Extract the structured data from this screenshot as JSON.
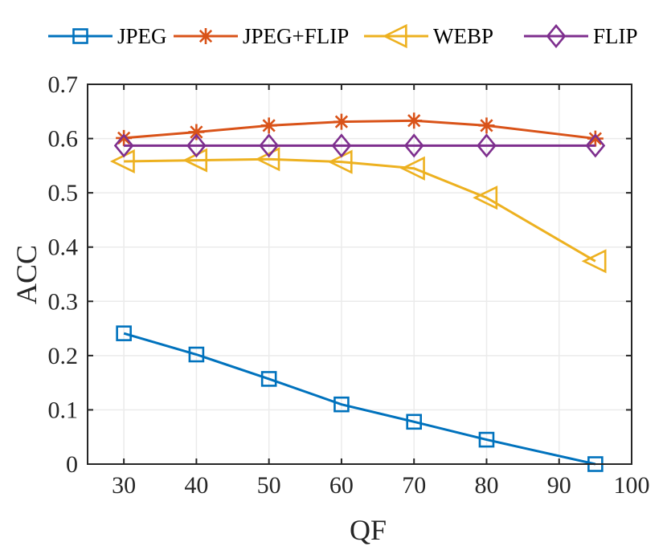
{
  "chart_data": {
    "type": "line",
    "title": "",
    "xlabel": "QF",
    "ylabel": "ACC",
    "xlim": [
      25,
      100
    ],
    "ylim": [
      0,
      0.7
    ],
    "xticks": [
      30,
      40,
      50,
      60,
      70,
      80,
      90,
      100
    ],
    "yticks": [
      0,
      0.1,
      0.2,
      0.3,
      0.4,
      0.5,
      0.6,
      0.7
    ],
    "xtick_labels": [
      "30",
      "40",
      "50",
      "60",
      "70",
      "80",
      "90",
      "100"
    ],
    "ytick_labels": [
      "0",
      "0.1",
      "0.2",
      "0.3",
      "0.4",
      "0.5",
      "0.6",
      "0.7"
    ],
    "grid": true,
    "legend_position": "top",
    "x": [
      30,
      40,
      50,
      60,
      70,
      80,
      95
    ],
    "series": [
      {
        "name": "JPEG",
        "marker": "square",
        "color": "#0072BD",
        "values": [
          0.241,
          0.202,
          0.157,
          0.11,
          0.078,
          0.045,
          0.0
        ]
      },
      {
        "name": "JPEG+FLIP",
        "marker": "asterisk",
        "color": "#D95319",
        "values": [
          0.601,
          0.612,
          0.624,
          0.631,
          0.633,
          0.624,
          0.6
        ]
      },
      {
        "name": "WEBP",
        "marker": "triangle-left",
        "color": "#EDB120",
        "values": [
          0.558,
          0.56,
          0.562,
          0.557,
          0.545,
          0.491,
          0.374
        ]
      },
      {
        "name": "FLIP",
        "marker": "diamond",
        "color": "#7E2F8E",
        "values": [
          0.587,
          0.587,
          0.587,
          0.587,
          0.587,
          0.587,
          0.587
        ]
      }
    ]
  }
}
